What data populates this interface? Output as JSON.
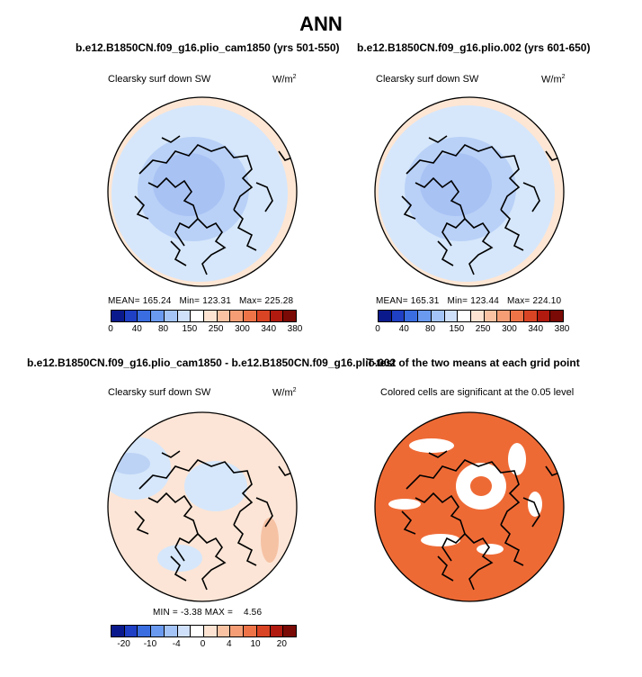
{
  "title": "ANN",
  "panels": [
    {
      "case": "b.e12.B1850CN.f09_g16.plio_cam1850 (yrs 501-550)",
      "variable": "Clearsky surf down SW",
      "units": "W/m",
      "units_sup": "2",
      "mean_label": "MEAN=",
      "mean": "165.24",
      "min_label": "Min=",
      "min": "123.31",
      "max_label": "Max=",
      "max": "225.28"
    },
    {
      "case": "b.e12.B1850CN.f09_g16.plio.002 (yrs 601-650)",
      "variable": "Clearsky surf down SW",
      "units": "W/m",
      "units_sup": "2",
      "mean_label": "MEAN=",
      "mean": "165.31",
      "min_label": "Min=",
      "min": "123.44",
      "max_label": "Max=",
      "max": "224.10"
    },
    {
      "case": "b.e12.B1850CN.f09_g16.plio_cam1850 - b.e12.B1850CN.f09_g16.plio.002",
      "variable": "Clearsky surf down SW",
      "units": "W/m",
      "units_sup": "2",
      "min_label": "MIN =",
      "min": "-3.38",
      "max_label": "MAX =",
      "max": "4.56"
    },
    {
      "case": "T-test of the two means at each grid point",
      "note": "Colored cells are significant at the 0.05 level"
    }
  ],
  "colorbar_abs": {
    "ticks": [
      "0",
      "40",
      "80",
      "150",
      "250",
      "300",
      "340",
      "380"
    ],
    "colors": [
      "#0a1a8c",
      "#1f3fc4",
      "#3a6ee0",
      "#6a9af0",
      "#a4c4f7",
      "#cfe0fa",
      "#ffffff",
      "#fde4d2",
      "#f9c3a3",
      "#f59e76",
      "#ee7448",
      "#d94424",
      "#b01a0f",
      "#7a0a05"
    ]
  },
  "colorbar_diff": {
    "ticks": [
      "-20",
      "-10",
      "-4",
      "0",
      "4",
      "10",
      "20"
    ],
    "colors": [
      "#0a1a8c",
      "#1f3fc4",
      "#3a6ee0",
      "#6a9af0",
      "#a4c4f7",
      "#cfe0fa",
      "#ffffff",
      "#fde4d2",
      "#f9c3a3",
      "#f59e76",
      "#ee7448",
      "#d94424",
      "#b01a0f",
      "#7a0a05"
    ]
  },
  "map_colors": {
    "abs_outer": "#d6e7fb",
    "abs_inner": "#b9d1f7",
    "abs_core": "#a8c2f4",
    "abs_rim": "#fde6d4",
    "diff_base": "#fce5d6",
    "diff_blue": "#d6e7fb",
    "diff_blue2": "#bcd3f5",
    "diff_red": "#f6c2a4",
    "sig": "#ee6a35",
    "nonsig": "#ffffff"
  }
}
